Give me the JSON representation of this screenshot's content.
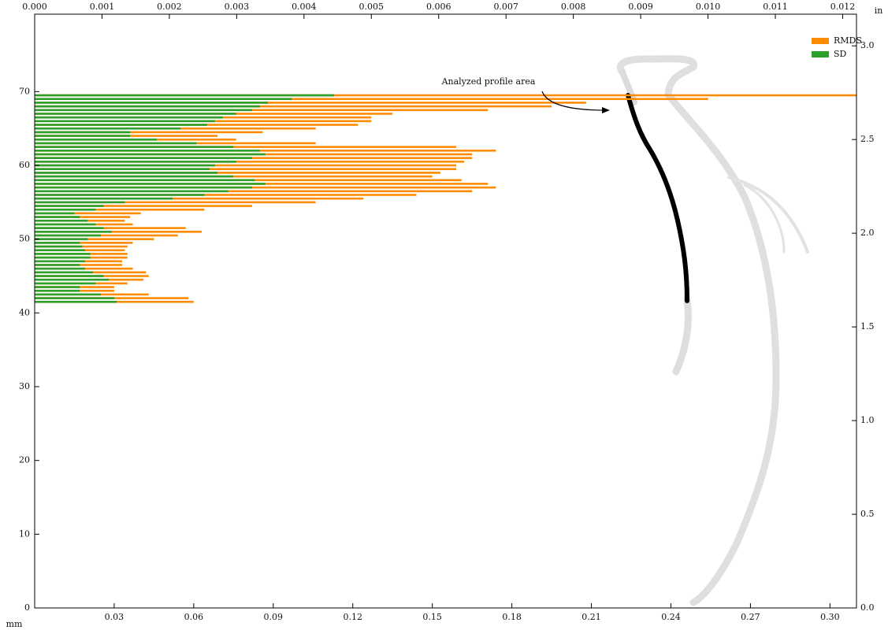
{
  "chart_data": {
    "type": "barh",
    "annotation": "Analyzed profile area",
    "xlabel": "mm",
    "x2label": "in",
    "xlim": [
      0,
      0.31
    ],
    "xticks": [
      0.03,
      0.06,
      0.09,
      0.12,
      0.15,
      0.18,
      0.21,
      0.24,
      0.27,
      {
        "value": 0.3,
        "label": "0.30"
      }
    ],
    "x2lim": [
      0,
      0.012205
    ],
    "x2ticks": [
      {
        "value": 0,
        "label": "0.000"
      },
      0.001,
      0.002,
      0.003,
      0.004,
      0.005,
      0.006,
      0.007,
      0.008,
      0.009,
      {
        "value": 0.01,
        "label": "0.010"
      },
      0.011,
      0.012
    ],
    "ylim": [
      0,
      80.5
    ],
    "yticks": [
      0,
      10,
      20,
      30,
      40,
      50,
      60,
      70
    ],
    "y2lim": [
      0,
      3.169
    ],
    "y2ticks": [
      {
        "value": 0,
        "label": "0.0"
      },
      0.5,
      {
        "value": 1,
        "label": "1.0"
      },
      1.5,
      {
        "value": 2,
        "label": "2.0"
      },
      2.5,
      {
        "value": 3,
        "label": "3.0"
      }
    ],
    "legend": "upper right",
    "y": [
      69.5,
      69.0,
      68.5,
      68.0,
      67.5,
      67.0,
      66.5,
      66.0,
      65.5,
      65.0,
      64.5,
      64.0,
      63.5,
      63.0,
      62.5,
      62.0,
      61.5,
      61.0,
      60.5,
      60.0,
      59.5,
      59.0,
      58.5,
      58.0,
      57.5,
      57.0,
      56.5,
      56.0,
      55.5,
      55.0,
      54.5,
      54.0,
      53.5,
      53.0,
      52.5,
      52.0,
      51.5,
      51.0,
      50.5,
      50.0,
      49.5,
      49.0,
      48.5,
      48.0,
      47.5,
      47.0,
      46.5,
      46.0,
      45.5,
      45.0,
      44.5,
      44.0,
      43.5,
      43.0,
      42.5,
      42.0,
      41.5
    ],
    "series": [
      {
        "name": "RMDS",
        "color": "#ff8c00",
        "values": [
          0.31,
          0.254,
          0.208,
          0.195,
          0.171,
          0.135,
          0.127,
          0.127,
          0.122,
          0.106,
          0.086,
          0.069,
          0.076,
          0.106,
          0.159,
          0.174,
          0.165,
          0.165,
          0.162,
          0.159,
          0.159,
          0.153,
          0.15,
          0.161,
          0.171,
          0.174,
          0.165,
          0.144,
          0.124,
          0.106,
          0.082,
          0.064,
          0.04,
          0.036,
          0.034,
          0.037,
          0.057,
          0.063,
          0.054,
          0.045,
          0.037,
          0.035,
          0.034,
          0.035,
          0.035,
          0.033,
          0.033,
          0.037,
          0.042,
          0.043,
          0.041,
          0.035,
          0.03,
          0.03,
          0.043,
          0.058,
          0.06
        ]
      },
      {
        "name": "SD",
        "color": "#2ca02c",
        "values": [
          0.113,
          0.097,
          0.088,
          0.085,
          0.082,
          0.076,
          0.071,
          0.068,
          0.065,
          0.055,
          0.036,
          0.036,
          0.046,
          0.061,
          0.075,
          0.085,
          0.087,
          0.082,
          0.076,
          0.068,
          0.066,
          0.069,
          0.075,
          0.083,
          0.087,
          0.082,
          0.073,
          0.064,
          0.052,
          0.034,
          0.026,
          0.023,
          0.015,
          0.017,
          0.02,
          0.023,
          0.026,
          0.029,
          0.025,
          0.02,
          0.017,
          0.018,
          0.019,
          0.021,
          0.021,
          0.019,
          0.017,
          0.019,
          0.022,
          0.026,
          0.028,
          0.023,
          0.017,
          0.017,
          0.025,
          0.03,
          0.031
        ]
      }
    ]
  }
}
